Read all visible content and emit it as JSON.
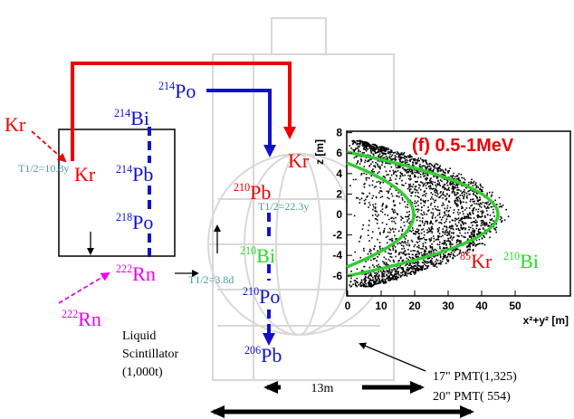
{
  "kr_source": "Kr",
  "kr_inside": "Kr",
  "kr_decay": "Kr",
  "chain": [
    {
      "mass": "214",
      "symbol": "Bi"
    },
    {
      "mass": "214",
      "symbol": "Pb"
    },
    {
      "mass": "218",
      "symbol": "Po"
    },
    {
      "mass": "222",
      "symbol": "Rn"
    },
    {
      "mass": "214",
      "symbol": "Po"
    },
    {
      "mass": "210",
      "symbol": "Pb"
    },
    {
      "mass": "210",
      "symbol": "Bi"
    },
    {
      "mass": "210",
      "symbol": "Po"
    },
    {
      "mass": "206",
      "symbol": "Pb"
    },
    {
      "mass": "222",
      "symbol": "Rn"
    }
  ],
  "half_lives": [
    "T1/2=10.8y",
    "T1/2=22.3y",
    "T1/2=3.8d"
  ],
  "scintillator": [
    "Liquid",
    "Scintillator",
    "(1,000t)"
  ],
  "dimension": "13m",
  "pmts": [
    "17\" PMT(1,325)",
    "20\" PMT(   554)"
  ],
  "inset": {
    "title": "(f) 0.5-1MeV",
    "y_label": "z [m]",
    "x_label": "x²+y² [m]",
    "yticks": [
      "8",
      "6",
      "4",
      "2",
      "0",
      "-2",
      "-4",
      "-6"
    ],
    "xticks": [
      "0",
      "10",
      "20",
      "30",
      "40",
      "50"
    ],
    "isotopes": [
      {
        "mass": "85",
        "symbol": "Kr"
      },
      {
        "mass": "210",
        "symbol": "Bi"
      }
    ]
  }
}
